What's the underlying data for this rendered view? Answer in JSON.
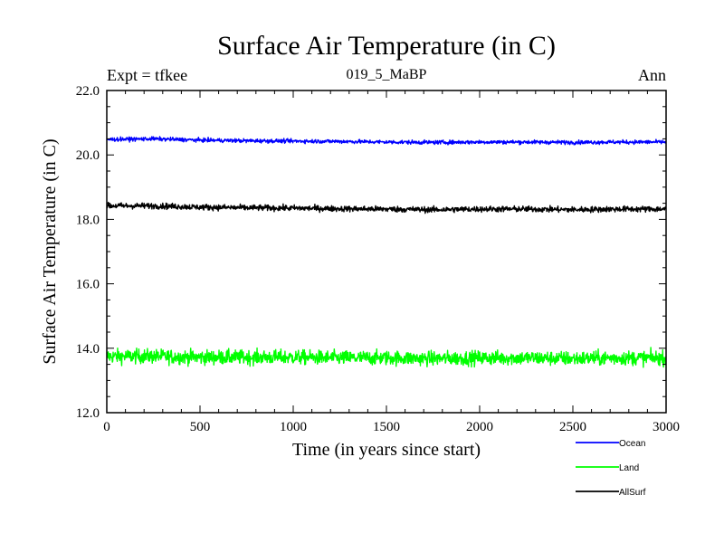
{
  "chart_data": {
    "type": "line",
    "title": "Surface Air Temperature (in C)",
    "subtitle": "019_5_MaBP",
    "left_label": "Expt = tfkee",
    "right_label": "Ann",
    "xlabel": "Time (in years since start)",
    "ylabel": "Surface Air Temperature (in C)",
    "xlim": [
      0,
      3000
    ],
    "ylim": [
      12.0,
      22.0
    ],
    "x_ticks": [
      0,
      500,
      1000,
      1500,
      2000,
      2500,
      3000
    ],
    "x_tick_labels": [
      "0",
      "500",
      "1000",
      "1500",
      "2000",
      "2500",
      "3000"
    ],
    "y_ticks": [
      12.0,
      14.0,
      16.0,
      18.0,
      20.0,
      22.0
    ],
    "y_tick_labels": [
      "12.0",
      "14.0",
      "16.0",
      "18.0",
      "20.0",
      "22.0"
    ],
    "grid": false,
    "legend_position": "bottom-right",
    "series": [
      {
        "name": "Ocean",
        "color": "#0000ff",
        "x": [
          0,
          250,
          500,
          750,
          1000,
          1250,
          1500,
          1750,
          2000,
          2250,
          2500,
          2750,
          3000
        ],
        "values": [
          20.48,
          20.5,
          20.46,
          20.44,
          20.43,
          20.42,
          20.4,
          20.39,
          20.4,
          20.4,
          20.39,
          20.4,
          20.4
        ],
        "noise": 0.06
      },
      {
        "name": "Land",
        "color": "#00ff00",
        "x": [
          0,
          250,
          500,
          750,
          1000,
          1250,
          1500,
          1750,
          2000,
          2250,
          2500,
          2750,
          3000
        ],
        "values": [
          13.75,
          13.75,
          13.72,
          13.72,
          13.72,
          13.7,
          13.7,
          13.68,
          13.7,
          13.7,
          13.68,
          13.7,
          13.7
        ],
        "noise": 0.22
      },
      {
        "name": "AllSurf",
        "color": "#000000",
        "x": [
          0,
          250,
          500,
          750,
          1000,
          1250,
          1500,
          1750,
          2000,
          2250,
          2500,
          2750,
          3000
        ],
        "values": [
          18.42,
          18.42,
          18.38,
          18.36,
          18.35,
          18.33,
          18.32,
          18.3,
          18.32,
          18.32,
          18.3,
          18.32,
          18.32
        ],
        "noise": 0.09
      }
    ]
  }
}
